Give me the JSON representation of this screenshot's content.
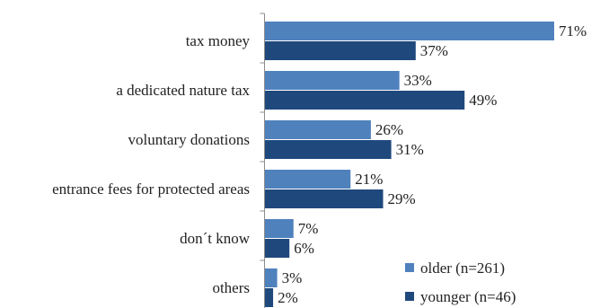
{
  "chart_data": {
    "type": "bar",
    "orientation": "horizontal",
    "title": "",
    "xlabel": "",
    "ylabel": "",
    "categories": [
      "tax money",
      "a dedicated nature tax",
      "voluntary donations",
      "entrance fees for protected areas",
      "don´t know",
      "others"
    ],
    "series": [
      {
        "name": "older (n=261)",
        "values": [
          71,
          33,
          26,
          21,
          7,
          3
        ],
        "labels": [
          "71%",
          "33%",
          "26%",
          "21%",
          "7%",
          "3%"
        ],
        "color": "#4f81bd"
      },
      {
        "name": "younger (n=46)",
        "values": [
          37,
          49,
          31,
          29,
          6,
          2
        ],
        "labels": [
          "37%",
          "49%",
          "31%",
          "29%",
          "6%",
          "2%"
        ],
        "color": "#1f497d"
      }
    ],
    "xlim": [
      0,
      75
    ],
    "grid": false,
    "legend_position": "bottom-right"
  }
}
